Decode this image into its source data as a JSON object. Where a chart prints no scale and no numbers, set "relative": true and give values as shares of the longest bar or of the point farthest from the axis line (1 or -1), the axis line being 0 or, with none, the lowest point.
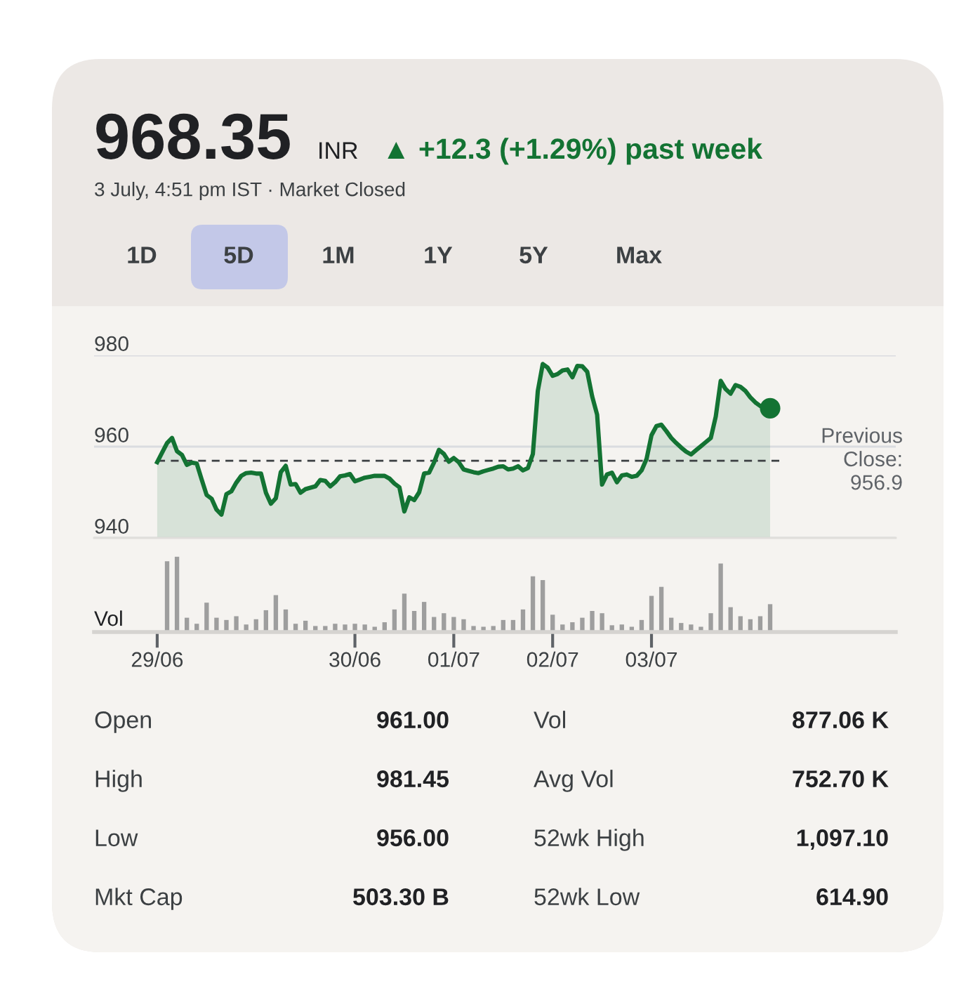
{
  "chart_data": [
    {
      "type": "area",
      "title": "968.35",
      "subtitle": "3 July, 4:51 pm IST · Market Closed",
      "annotations": [
        "INR",
        "▲ +12.3 (+1.29%) past week",
        "1D",
        "5D",
        "1M",
        "1Y",
        "5Y",
        "Max",
        "Open",
        "961.00",
        "Vol",
        "877.06 K",
        "High",
        "981.45",
        "Avg Vol",
        "752.70 K",
        "Low",
        "956.00",
        "52wk High",
        "1,097.10",
        "Mkt Cap",
        "503.30 B",
        "52wk Low",
        "614.90"
      ],
      "categories": [
        null,
        null,
        null,
        null,
        null,
        null,
        null,
        null,
        null,
        null,
        null,
        null,
        null,
        null,
        null,
        null,
        null,
        null,
        null,
        null,
        null,
        null,
        null,
        null,
        null,
        null,
        null,
        null,
        null,
        null,
        null,
        null,
        null,
        null,
        null,
        null,
        null,
        null,
        null,
        null,
        null,
        null,
        null,
        null,
        null,
        null,
        null,
        null,
        null,
        null,
        null,
        null,
        null,
        null,
        null,
        null,
        null,
        null,
        null,
        null,
        null,
        null,
        null,
        null,
        null,
        null,
        null,
        null,
        null,
        null,
        null,
        null,
        null,
        null,
        null,
        null,
        null,
        null,
        null,
        null,
        null,
        null,
        null,
        null,
        null,
        null,
        null,
        null,
        null,
        null,
        null,
        null,
        null,
        null,
        null,
        null,
        null,
        null,
        null,
        null,
        null,
        null,
        null,
        null,
        null,
        null,
        null,
        null,
        null,
        null,
        null,
        null,
        null,
        null,
        null,
        null,
        null,
        null,
        null,
        null,
        null,
        null,
        null,
        null,
        null
      ],
      "series": [
        {
          "type": "area",
          "color": "#137333",
          "values": [
            956.6,
            958.7,
            960.8,
            961.9,
            959.0,
            958.2,
            956.0,
            956.5,
            956.3,
            952.8,
            949.4,
            948.6,
            946.2,
            945.1,
            949.6,
            950.2,
            952.1,
            953.6,
            954.2,
            954.3,
            954.1,
            954.1,
            949.9,
            947.5,
            948.7,
            954.4,
            955.8,
            951.7,
            951.8,
            949.9,
            950.7,
            951.0,
            951.3,
            952.7,
            952.5,
            951.3,
            952.2,
            953.5,
            953.7,
            954.0,
            952.4,
            952.8,
            953.2,
            953.4,
            953.6,
            953.6,
            953.6,
            953.0,
            951.9,
            951.1,
            945.8,
            948.9,
            948.3,
            950.0,
            954.1,
            954.3,
            956.5,
            959.3,
            958.4,
            956.7,
            957.5,
            956.6,
            955.0,
            954.7,
            954.4,
            954.2,
            954.6,
            954.9,
            955.2,
            955.6,
            955.7,
            955.0,
            955.2,
            955.7,
            954.8,
            955.3,
            958.4,
            972.2,
            978.1,
            977.3,
            975.5,
            975.9,
            976.7,
            976.9,
            975.2,
            977.7,
            977.6,
            976.4,
            971.0,
            967.0,
            951.7,
            953.9,
            954.3,
            952.2,
            953.7,
            953.9,
            953.4,
            953.6,
            954.8,
            957.3,
            962.5,
            964.5,
            964.8,
            963.4,
            961.9,
            960.8,
            959.8,
            958.9,
            958.3,
            959.2,
            960.1,
            961.0,
            961.9,
            966.6,
            974.4,
            972.6,
            971.6,
            973.5,
            973.1,
            972.2,
            970.8,
            969.7,
            968.9,
            968.5,
            968.4
          ]
        },
        {
          "type": "scatter",
          "color": "#137333",
          "values": [
            null,
            null,
            null,
            null,
            null,
            null,
            null,
            null,
            null,
            null,
            null,
            null,
            null,
            null,
            null,
            null,
            null,
            null,
            null,
            null,
            null,
            null,
            null,
            null,
            null,
            null,
            null,
            null,
            null,
            null,
            null,
            null,
            null,
            null,
            null,
            null,
            null,
            null,
            null,
            null,
            null,
            null,
            null,
            null,
            null,
            null,
            null,
            null,
            null,
            null,
            null,
            null,
            null,
            null,
            null,
            null,
            null,
            null,
            null,
            null,
            null,
            null,
            null,
            null,
            null,
            null,
            null,
            null,
            null,
            null,
            null,
            null,
            null,
            null,
            null,
            null,
            null,
            null,
            null,
            null,
            null,
            null,
            null,
            null,
            null,
            null,
            null,
            null,
            null,
            null,
            null,
            null,
            null,
            null,
            null,
            null,
            null,
            null,
            null,
            null,
            null,
            null,
            null,
            null,
            null,
            null,
            null,
            null,
            null,
            null,
            null,
            null,
            null,
            null,
            null,
            null,
            null,
            null,
            null,
            null,
            null,
            null,
            null,
            null,
            968.4
          ]
        }
      ],
      "ylim": [
        940,
        980
      ],
      "yticks": [
        940,
        960,
        980
      ],
      "grid": "y",
      "tick_labels": "y",
      "ref_lines": [
        {
          "axis": "y",
          "value": 956.9,
          "label": "Previous\nClose:\n956.9",
          "line_style": "dashed",
          "color": "#3c4043"
        }
      ]
    },
    {
      "type": "bar",
      "relative": true,
      "ylabel": "Vol",
      "color": "#9e9e9e",
      "categories": [
        "29/06",
        null,
        null,
        null,
        null,
        null,
        null,
        null,
        null,
        null,
        null,
        null,
        null,
        null,
        null,
        null,
        null,
        null,
        null,
        null,
        "30/06",
        null,
        null,
        null,
        null,
        null,
        null,
        null,
        null,
        null,
        "01/07",
        null,
        null,
        null,
        null,
        null,
        null,
        null,
        null,
        null,
        "02/07",
        null,
        null,
        null,
        null,
        null,
        null,
        null,
        null,
        null,
        "03/07",
        null,
        null,
        null,
        null,
        null,
        null,
        null,
        null,
        null,
        null,
        null,
        null
      ],
      "values": [
        null,
        0.94,
        1,
        0.19,
        0.11,
        0.39,
        0.19,
        0.16,
        0.21,
        0.1,
        0.17,
        0.29,
        0.49,
        0.3,
        0.11,
        0.15,
        0.08,
        0.08,
        0.11,
        0.1,
        0.11,
        0.1,
        0.07,
        0.13,
        0.3,
        0.51,
        0.28,
        0.4,
        0.2,
        0.25,
        0.2,
        0.17,
        0.08,
        0.07,
        0.08,
        0.16,
        0.16,
        0.3,
        0.74,
        0.69,
        0.23,
        0.1,
        0.13,
        0.19,
        0.28,
        0.25,
        0.09,
        0.1,
        0.07,
        0.16,
        0.48,
        0.6,
        0.19,
        0.12,
        0.1,
        0.07,
        0.25,
        0.91,
        0.33,
        0.21,
        0.17,
        0.21,
        0.37
      ],
      "tick_labels": "x"
    }
  ]
}
